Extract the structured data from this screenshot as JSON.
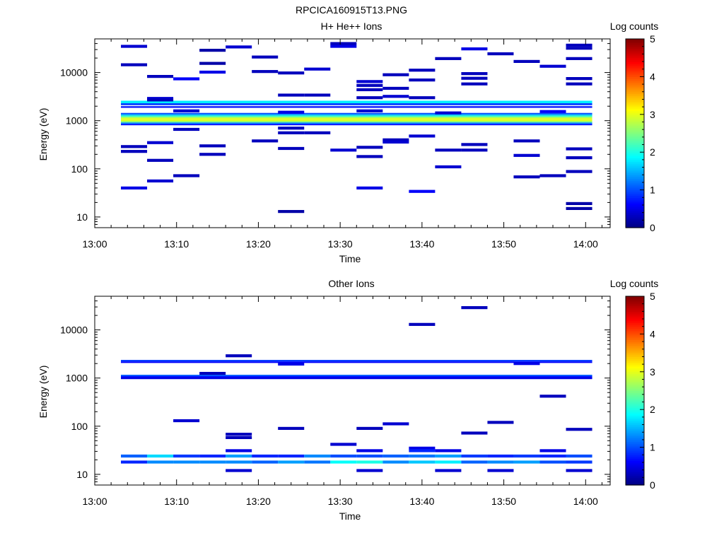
{
  "figure_title": "RPCICA160915T13.PNG",
  "chart_data": [
    {
      "type": "heatmap",
      "title": "H+ He++ Ions",
      "xlabel": "Time",
      "ylabel": "Energy (eV)",
      "x_range": [
        "13:00",
        "14:03"
      ],
      "x_ticks": [
        "13:00",
        "13:10",
        "13:20",
        "13:30",
        "13:40",
        "13:50",
        "14:00"
      ],
      "y_scale": "log",
      "y_range": [
        6,
        50000
      ],
      "y_ticks": [
        "10",
        "100",
        "1000",
        "10000"
      ],
      "colorbar": {
        "label": "Log counts",
        "min": 0,
        "max": 5,
        "ticks": [
          "0",
          "1",
          "2",
          "3",
          "4",
          "5"
        ]
      },
      "cells": [
        {
          "t": 3.2,
          "e": 35000,
          "z": 0.4
        },
        {
          "t": 3.2,
          "e": 14500,
          "z": 0.3
        },
        {
          "t": 6.4,
          "e": 8300,
          "z": 0.3
        },
        {
          "t": 9.6,
          "e": 7400,
          "z": 0.6
        },
        {
          "t": 12.8,
          "e": 10200,
          "z": 0.5
        },
        {
          "t": 12.8,
          "e": 15500,
          "z": 0.2
        },
        {
          "t": 12.8,
          "e": 29000,
          "z": 0.2
        },
        {
          "t": 16.0,
          "e": 34000,
          "z": 0.4
        },
        {
          "t": 19.2,
          "e": 21000,
          "z": 0.3
        },
        {
          "t": 19.2,
          "e": 10500,
          "z": 0.3
        },
        {
          "t": 22.4,
          "e": 9800,
          "z": 0.3
        },
        {
          "t": 25.6,
          "e": 11800,
          "z": 0.4
        },
        {
          "t": 28.8,
          "e": 35000,
          "z": 0.5
        },
        {
          "t": 28.8,
          "e": 40000,
          "z": 0.3
        },
        {
          "t": 32.0,
          "e": 6500,
          "z": 0.4
        },
        {
          "t": 32.0,
          "e": 5400,
          "z": 0.3
        },
        {
          "t": 32.0,
          "e": 4400,
          "z": 0.3
        },
        {
          "t": 35.2,
          "e": 9000,
          "z": 0.3
        },
        {
          "t": 35.2,
          "e": 4700,
          "z": 0.3
        },
        {
          "t": 35.2,
          "e": 3200,
          "z": 0.4
        },
        {
          "t": 38.4,
          "e": 11200,
          "z": 0.3
        },
        {
          "t": 38.4,
          "e": 7000,
          "z": 0.3
        },
        {
          "t": 41.6,
          "e": 19500,
          "z": 0.3
        },
        {
          "t": 44.8,
          "e": 31000,
          "z": 0.5
        },
        {
          "t": 44.8,
          "e": 9500,
          "z": 0.3
        },
        {
          "t": 44.8,
          "e": 7600,
          "z": 0.3
        },
        {
          "t": 44.8,
          "e": 5800,
          "z": 0.3
        },
        {
          "t": 48.0,
          "e": 24500,
          "z": 0.3
        },
        {
          "t": 51.2,
          "e": 17000,
          "z": 0.3
        },
        {
          "t": 54.4,
          "e": 13500,
          "z": 0.4
        },
        {
          "t": 57.6,
          "e": 37000,
          "z": 0.3
        },
        {
          "t": 57.6,
          "e": 32000,
          "z": 0.3
        },
        {
          "t": 57.6,
          "e": 19500,
          "z": 0.3
        },
        {
          "t": 57.6,
          "e": 7500,
          "z": 0.3
        },
        {
          "t": 57.6,
          "e": 5800,
          "z": 0.3
        },
        {
          "t": 6.4,
          "e": 2900,
          "z": 0.4
        },
        {
          "t": 6.4,
          "e": 2700,
          "z": 0.3
        },
        {
          "t": 22.4,
          "e": 3400,
          "z": 0.3
        },
        {
          "t": 25.6,
          "e": 3400,
          "z": 0.3
        },
        {
          "t": 32.0,
          "e": 3000,
          "z": 0.3
        },
        {
          "t": 38.4,
          "e": 3000,
          "z": 0.3
        },
        {
          "t": 9.6,
          "e": 1600,
          "z": 0.4
        },
        {
          "t": 22.4,
          "e": 1500,
          "z": 0.5
        },
        {
          "t": 32.0,
          "e": 1600,
          "z": 0.4
        },
        {
          "t": 41.6,
          "e": 1450,
          "z": 0.4
        },
        {
          "t": 54.4,
          "e": 1550,
          "z": 0.6
        },
        {
          "t": 3.2,
          "e": 290,
          "z": 0.3
        },
        {
          "t": 3.2,
          "e": 230,
          "z": 0.3
        },
        {
          "t": 3.2,
          "e": 40,
          "z": 0.5
        },
        {
          "t": 6.4,
          "e": 350,
          "z": 0.4
        },
        {
          "t": 6.4,
          "e": 150,
          "z": 0.3
        },
        {
          "t": 6.4,
          "e": 56,
          "z": 0.4
        },
        {
          "t": 9.6,
          "e": 660,
          "z": 0.3
        },
        {
          "t": 9.6,
          "e": 72,
          "z": 0.3
        },
        {
          "t": 12.8,
          "e": 300,
          "z": 0.3
        },
        {
          "t": 12.8,
          "e": 200,
          "z": 0.3
        },
        {
          "t": 19.2,
          "e": 380,
          "z": 0.3
        },
        {
          "t": 22.4,
          "e": 700,
          "z": 0.3
        },
        {
          "t": 22.4,
          "e": 560,
          "z": 0.3
        },
        {
          "t": 22.4,
          "e": 265,
          "z": 0.3
        },
        {
          "t": 25.6,
          "e": 560,
          "z": 0.3
        },
        {
          "t": 28.8,
          "e": 245,
          "z": 0.4
        },
        {
          "t": 32.0,
          "e": 280,
          "z": 0.3
        },
        {
          "t": 32.0,
          "e": 180,
          "z": 0.3
        },
        {
          "t": 32.0,
          "e": 40,
          "z": 0.5
        },
        {
          "t": 35.2,
          "e": 400,
          "z": 0.3
        },
        {
          "t": 35.2,
          "e": 360,
          "z": 0.4
        },
        {
          "t": 38.4,
          "e": 480,
          "z": 0.4
        },
        {
          "t": 38.4,
          "e": 34,
          "z": 0.6
        },
        {
          "t": 41.6,
          "e": 245,
          "z": 0.3
        },
        {
          "t": 41.6,
          "e": 110,
          "z": 0.4
        },
        {
          "t": 44.8,
          "e": 320,
          "z": 0.3
        },
        {
          "t": 44.8,
          "e": 245,
          "z": 0.3
        },
        {
          "t": 51.2,
          "e": 380,
          "z": 0.3
        },
        {
          "t": 51.2,
          "e": 190,
          "z": 0.4
        },
        {
          "t": 51.2,
          "e": 68,
          "z": 0.3
        },
        {
          "t": 54.4,
          "e": 72,
          "z": 0.3
        },
        {
          "t": 57.6,
          "e": 260,
          "z": 0.3
        },
        {
          "t": 57.6,
          "e": 170,
          "z": 0.3
        },
        {
          "t": 57.6,
          "e": 88,
          "z": 0.3
        },
        {
          "t": 22.4,
          "e": 13,
          "z": 0.2
        },
        {
          "t": 57.6,
          "e": 15,
          "z": 0.2
        },
        {
          "t": 57.6,
          "e": 19,
          "z": 0.2
        }
      ],
      "bands": [
        {
          "e_lo": 2300,
          "e_hi": 2600,
          "z": 1.8
        },
        {
          "e_lo": 2100,
          "e_hi": 2300,
          "z": 0.9
        },
        {
          "e_lo": 1850,
          "e_hi": 2000,
          "z": 0.7
        },
        {
          "e_lo": 1350,
          "e_hi": 1450,
          "z": 1.0
        },
        {
          "e_lo": 1270,
          "e_hi": 1350,
          "z": 1.6
        },
        {
          "e_lo": 1170,
          "e_hi": 1270,
          "z": 2.3
        },
        {
          "e_lo": 1070,
          "e_hi": 1170,
          "z": 2.9
        },
        {
          "e_lo": 990,
          "e_hi": 1070,
          "z": 3.0
        },
        {
          "e_lo": 920,
          "e_hi": 990,
          "z": 2.6
        },
        {
          "e_lo": 860,
          "e_hi": 920,
          "z": 1.3
        },
        {
          "e_lo": 820,
          "e_hi": 860,
          "z": 0.7
        }
      ]
    },
    {
      "type": "heatmap",
      "title": "Other Ions",
      "xlabel": "Time",
      "ylabel": "Energy (eV)",
      "x_range": [
        "13:00",
        "14:03"
      ],
      "x_ticks": [
        "13:00",
        "13:10",
        "13:20",
        "13:30",
        "13:40",
        "13:50",
        "14:00"
      ],
      "y_scale": "log",
      "y_range": [
        6,
        50000
      ],
      "y_ticks": [
        "10",
        "100",
        "1000",
        "10000"
      ],
      "colorbar": {
        "label": "Log counts",
        "min": 0,
        "max": 5,
        "ticks": [
          "0",
          "1",
          "2",
          "3",
          "4",
          "5"
        ]
      },
      "cells": [
        {
          "t": 38.4,
          "e": 13000,
          "z": 0.3
        },
        {
          "t": 44.8,
          "e": 29000,
          "z": 0.3
        },
        {
          "t": 16.0,
          "e": 2900,
          "z": 0.3
        },
        {
          "t": 12.8,
          "e": 1250,
          "z": 0.3
        },
        {
          "t": 22.4,
          "e": 1950,
          "z": 0.5
        },
        {
          "t": 51.2,
          "e": 2000,
          "z": 0.5
        },
        {
          "t": 9.6,
          "e": 130,
          "z": 0.4
        },
        {
          "t": 16.0,
          "e": 68,
          "z": 0.3
        },
        {
          "t": 16.0,
          "e": 58,
          "z": 0.3
        },
        {
          "t": 22.4,
          "e": 90,
          "z": 0.3
        },
        {
          "t": 28.8,
          "e": 42,
          "z": 0.4
        },
        {
          "t": 32.0,
          "e": 90,
          "z": 0.3
        },
        {
          "t": 35.2,
          "e": 112,
          "z": 0.4
        },
        {
          "t": 44.8,
          "e": 72,
          "z": 0.3
        },
        {
          "t": 48.0,
          "e": 120,
          "z": 0.3
        },
        {
          "t": 54.4,
          "e": 420,
          "z": 0.3
        },
        {
          "t": 57.6,
          "e": 86,
          "z": 0.3
        },
        {
          "t": 16.0,
          "e": 31,
          "z": 0.5
        },
        {
          "t": 32.0,
          "e": 31,
          "z": 0.5
        },
        {
          "t": 38.4,
          "e": 35,
          "z": 0.5
        },
        {
          "t": 38.4,
          "e": 31,
          "z": 0.8
        },
        {
          "t": 41.6,
          "e": 31,
          "z": 0.5
        },
        {
          "t": 54.4,
          "e": 31,
          "z": 0.5
        },
        {
          "t": 3.2,
          "e": 24,
          "z": 1.1
        },
        {
          "t": 6.4,
          "e": 24,
          "z": 1.7
        },
        {
          "t": 9.6,
          "e": 24,
          "z": 0.9
        },
        {
          "t": 12.8,
          "e": 24,
          "z": 0.8
        },
        {
          "t": 16.0,
          "e": 24,
          "z": 1.4
        },
        {
          "t": 19.2,
          "e": 24,
          "z": 0.8
        },
        {
          "t": 22.4,
          "e": 24,
          "z": 0.8
        },
        {
          "t": 25.6,
          "e": 24,
          "z": 1.3
        },
        {
          "t": 28.8,
          "e": 24,
          "z": 1.0
        },
        {
          "t": 32.0,
          "e": 24,
          "z": 1.0
        },
        {
          "t": 35.2,
          "e": 24,
          "z": 1.1
        },
        {
          "t": 38.4,
          "e": 24,
          "z": 1.2
        },
        {
          "t": 41.6,
          "e": 24,
          "z": 1.4
        },
        {
          "t": 44.8,
          "e": 24,
          "z": 0.9
        },
        {
          "t": 48.0,
          "e": 24,
          "z": 0.8
        },
        {
          "t": 51.2,
          "e": 24,
          "z": 0.9
        },
        {
          "t": 54.4,
          "e": 24,
          "z": 0.8
        },
        {
          "t": 57.6,
          "e": 24,
          "z": 1.0
        },
        {
          "t": 3.2,
          "e": 18,
          "z": 0.8
        },
        {
          "t": 6.4,
          "e": 18,
          "z": 1.3
        },
        {
          "t": 9.6,
          "e": 18,
          "z": 1.3
        },
        {
          "t": 12.8,
          "e": 18,
          "z": 1.3
        },
        {
          "t": 16.0,
          "e": 18,
          "z": 1.3
        },
        {
          "t": 19.2,
          "e": 18,
          "z": 1.1
        },
        {
          "t": 22.4,
          "e": 18,
          "z": 1.4
        },
        {
          "t": 25.6,
          "e": 18,
          "z": 1.2
        },
        {
          "t": 28.8,
          "e": 18,
          "z": 1.9
        },
        {
          "t": 32.0,
          "e": 18,
          "z": 2.0
        },
        {
          "t": 35.2,
          "e": 18,
          "z": 1.3
        },
        {
          "t": 38.4,
          "e": 18,
          "z": 1.6
        },
        {
          "t": 41.6,
          "e": 18,
          "z": 1.8
        },
        {
          "t": 44.8,
          "e": 18,
          "z": 1.1
        },
        {
          "t": 48.0,
          "e": 18,
          "z": 1.3
        },
        {
          "t": 51.2,
          "e": 18,
          "z": 1.4
        },
        {
          "t": 54.4,
          "e": 18,
          "z": 1.0
        },
        {
          "t": 57.6,
          "e": 18,
          "z": 0.9
        },
        {
          "t": 16.0,
          "e": 12,
          "z": 0.4
        },
        {
          "t": 32.0,
          "e": 12,
          "z": 0.4
        },
        {
          "t": 41.6,
          "e": 12,
          "z": 0.4
        },
        {
          "t": 48.0,
          "e": 12,
          "z": 0.4
        },
        {
          "t": 57.6,
          "e": 12,
          "z": 0.4
        }
      ],
      "bands": [
        {
          "e_lo": 2200,
          "e_hi": 2380,
          "z": 0.9
        },
        {
          "e_lo": 2080,
          "e_hi": 2200,
          "z": 0.6
        },
        {
          "e_lo": 1100,
          "e_hi": 1170,
          "z": 1.1
        },
        {
          "e_lo": 1040,
          "e_hi": 1100,
          "z": 0.7
        },
        {
          "e_lo": 950,
          "e_hi": 1040,
          "z": 0.5
        }
      ]
    }
  ]
}
